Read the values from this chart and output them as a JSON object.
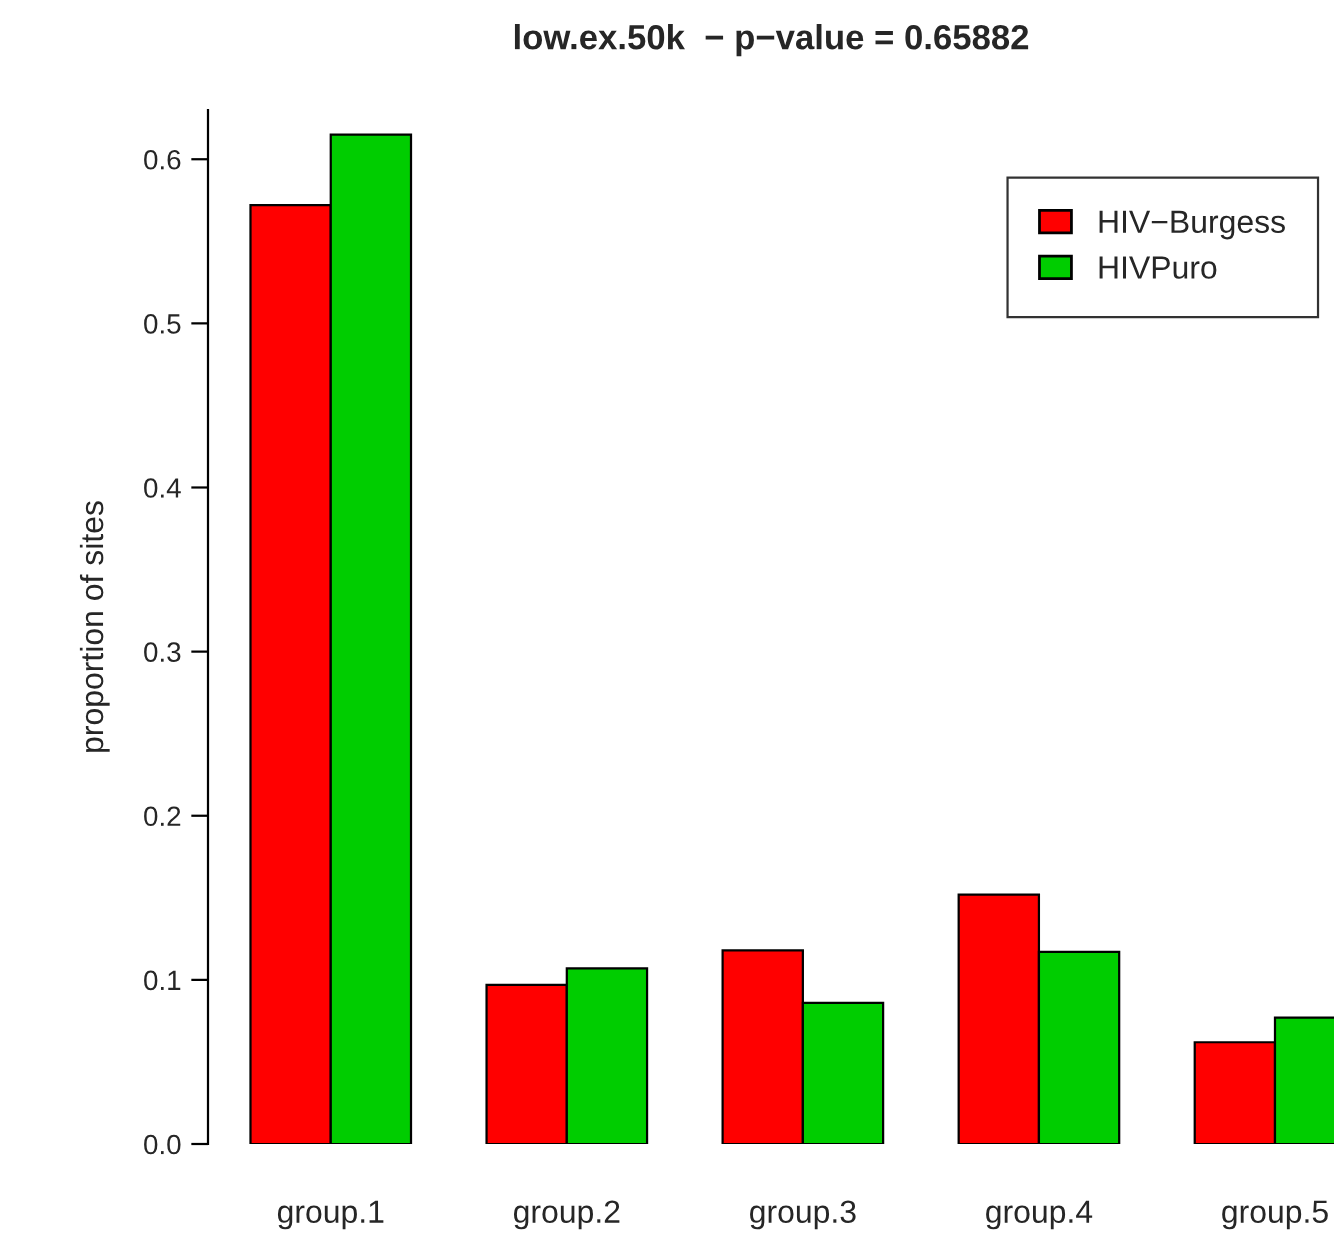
{
  "chart_data": {
    "type": "bar",
    "title": "low.ex.50k  − p−value = 0.65882",
    "ylabel": "proportion of sites",
    "categories": [
      "group.1",
      "group.2",
      "group.3",
      "group.4",
      "group.5"
    ],
    "series": [
      {
        "name": "HIV−Burgess",
        "color": "#ff0000",
        "values": [
          0.572,
          0.097,
          0.118,
          0.152,
          0.062
        ]
      },
      {
        "name": "HIVPuro",
        "color": "#00cd00",
        "values": [
          0.615,
          0.107,
          0.086,
          0.117,
          0.077
        ]
      }
    ],
    "ylim": [
      0,
      0.63
    ],
    "yticks": [
      {
        "value": 0,
        "label": "0.0"
      },
      {
        "value": 0.1,
        "label": "0.1"
      },
      {
        "value": 0.2,
        "label": "0.2"
      },
      {
        "value": 0.3,
        "label": "0.3"
      },
      {
        "value": 0.4,
        "label": "0.4"
      },
      {
        "value": 0.5,
        "label": "0.5"
      },
      {
        "value": 0.6,
        "label": "0.6"
      }
    ],
    "grid": false,
    "legend": "top right"
  }
}
